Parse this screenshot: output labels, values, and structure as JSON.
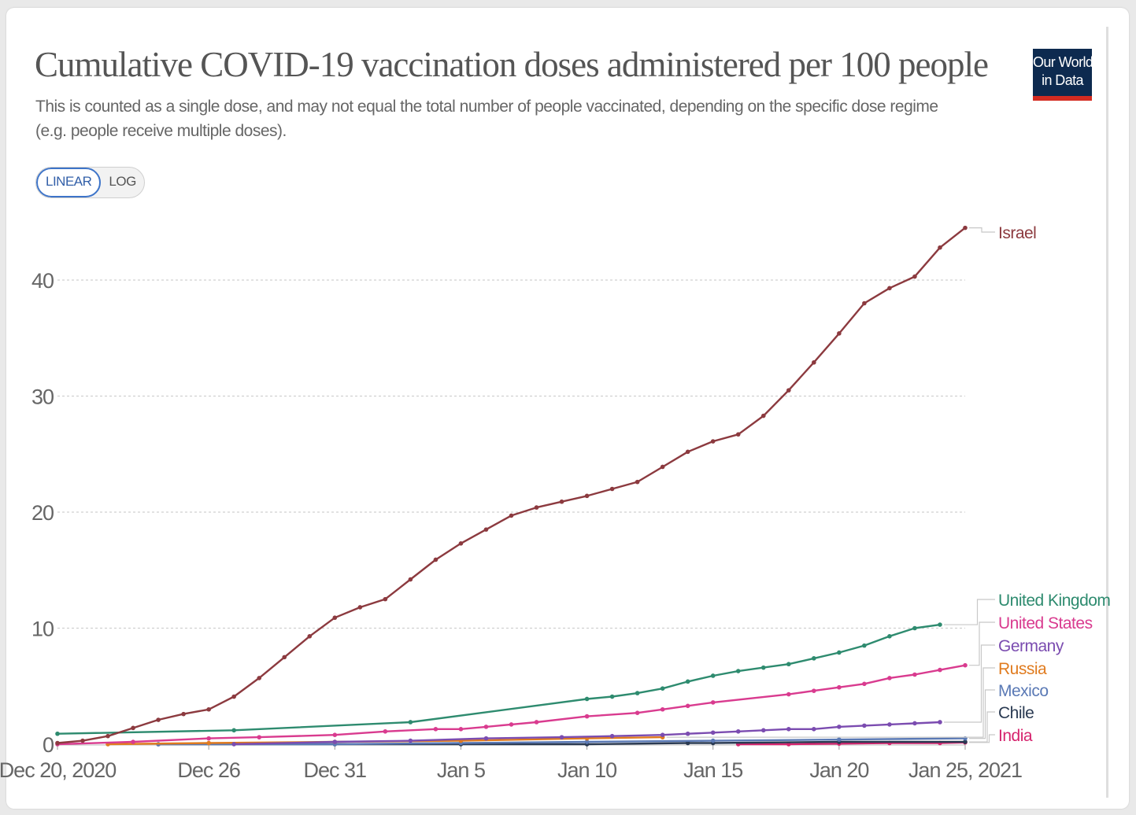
{
  "title": "Cumulative COVID-19 vaccination doses administered per 100 people",
  "subtitle": "This is counted as a single dose, and may not equal the total number of people vaccinated, depending on the specific dose regime (e.g. people receive multiple doses).",
  "logo": {
    "line1": "Our World",
    "line2": "in Data"
  },
  "scale_toggle": {
    "linear": "LINEAR",
    "log": "LOG",
    "selected": "LINEAR"
  },
  "chart_data": {
    "type": "line",
    "x_start": "2020-12-20",
    "x_end": "2021-01-25",
    "ylim": [
      0,
      45
    ],
    "yticks": [
      0,
      10,
      20,
      30,
      40
    ],
    "xticks": [
      {
        "date": "2020-12-20",
        "label": "Dec 20, 2020"
      },
      {
        "date": "2020-12-26",
        "label": "Dec 26"
      },
      {
        "date": "2020-12-31",
        "label": "Dec 31"
      },
      {
        "date": "2021-01-05",
        "label": "Jan 5"
      },
      {
        "date": "2021-01-10",
        "label": "Jan 10"
      },
      {
        "date": "2021-01-15",
        "label": "Jan 15"
      },
      {
        "date": "2021-01-20",
        "label": "Jan 20"
      },
      {
        "date": "2021-01-25",
        "label": "Jan 25, 2021"
      }
    ],
    "grid": true,
    "series": [
      {
        "name": "Israel",
        "color": "#8c3a3f",
        "points": [
          [
            "2020-12-20",
            0.1
          ],
          [
            "2020-12-21",
            0.3
          ],
          [
            "2020-12-22",
            0.7
          ],
          [
            "2020-12-23",
            1.4
          ],
          [
            "2020-12-24",
            2.1
          ],
          [
            "2020-12-25",
            2.6
          ],
          [
            "2020-12-26",
            3.0
          ],
          [
            "2020-12-27",
            4.1
          ],
          [
            "2020-12-28",
            5.7
          ],
          [
            "2020-12-29",
            7.5
          ],
          [
            "2020-12-30",
            9.3
          ],
          [
            "2020-12-31",
            10.9
          ],
          [
            "2021-01-01",
            11.8
          ],
          [
            "2021-01-02",
            12.5
          ],
          [
            "2021-01-03",
            14.2
          ],
          [
            "2021-01-04",
            15.9
          ],
          [
            "2021-01-05",
            17.3
          ],
          [
            "2021-01-06",
            18.5
          ],
          [
            "2021-01-07",
            19.7
          ],
          [
            "2021-01-08",
            20.4
          ],
          [
            "2021-01-09",
            20.9
          ],
          [
            "2021-01-10",
            21.4
          ],
          [
            "2021-01-11",
            22.0
          ],
          [
            "2021-01-12",
            22.6
          ],
          [
            "2021-01-13",
            23.9
          ],
          [
            "2021-01-14",
            25.2
          ],
          [
            "2021-01-15",
            26.1
          ],
          [
            "2021-01-16",
            26.7
          ],
          [
            "2021-01-17",
            28.3
          ],
          [
            "2021-01-18",
            30.5
          ],
          [
            "2021-01-19",
            32.9
          ],
          [
            "2021-01-20",
            35.4
          ],
          [
            "2021-01-21",
            38.0
          ],
          [
            "2021-01-22",
            39.3
          ],
          [
            "2021-01-23",
            40.3
          ],
          [
            "2021-01-24",
            42.8
          ],
          [
            "2021-01-25",
            44.5
          ]
        ]
      },
      {
        "name": "United Kingdom",
        "color": "#2e8b6f",
        "points": [
          [
            "2020-12-20",
            0.9
          ],
          [
            "2020-12-27",
            1.2
          ],
          [
            "2021-01-03",
            1.9
          ],
          [
            "2021-01-10",
            3.9
          ],
          [
            "2021-01-11",
            4.1
          ],
          [
            "2021-01-12",
            4.4
          ],
          [
            "2021-01-13",
            4.8
          ],
          [
            "2021-01-14",
            5.4
          ],
          [
            "2021-01-15",
            5.9
          ],
          [
            "2021-01-16",
            6.3
          ],
          [
            "2021-01-17",
            6.6
          ],
          [
            "2021-01-18",
            6.9
          ],
          [
            "2021-01-19",
            7.4
          ],
          [
            "2021-01-20",
            7.9
          ],
          [
            "2021-01-21",
            8.5
          ],
          [
            "2021-01-22",
            9.3
          ],
          [
            "2021-01-23",
            10.0
          ],
          [
            "2021-01-24",
            10.3
          ]
        ]
      },
      {
        "name": "United States",
        "color": "#d93b8f",
        "points": [
          [
            "2020-12-20",
            0.0
          ],
          [
            "2020-12-23",
            0.2
          ],
          [
            "2020-12-26",
            0.5
          ],
          [
            "2020-12-28",
            0.6
          ],
          [
            "2020-12-31",
            0.8
          ],
          [
            "2021-01-02",
            1.1
          ],
          [
            "2021-01-04",
            1.3
          ],
          [
            "2021-01-05",
            1.3
          ],
          [
            "2021-01-06",
            1.5
          ],
          [
            "2021-01-07",
            1.7
          ],
          [
            "2021-01-08",
            1.9
          ],
          [
            "2021-01-10",
            2.4
          ],
          [
            "2021-01-12",
            2.7
          ],
          [
            "2021-01-13",
            3.0
          ],
          [
            "2021-01-14",
            3.3
          ],
          [
            "2021-01-15",
            3.6
          ],
          [
            "2021-01-18",
            4.3
          ],
          [
            "2021-01-19",
            4.6
          ],
          [
            "2021-01-20",
            4.9
          ],
          [
            "2021-01-21",
            5.2
          ],
          [
            "2021-01-22",
            5.7
          ],
          [
            "2021-01-23",
            6.0
          ],
          [
            "2021-01-24",
            6.4
          ],
          [
            "2021-01-25",
            6.8
          ]
        ]
      },
      {
        "name": "Germany",
        "color": "#7b4cb0",
        "points": [
          [
            "2020-12-27",
            0.0
          ],
          [
            "2020-12-31",
            0.2
          ],
          [
            "2021-01-03",
            0.3
          ],
          [
            "2021-01-06",
            0.5
          ],
          [
            "2021-01-09",
            0.6
          ],
          [
            "2021-01-11",
            0.7
          ],
          [
            "2021-01-13",
            0.8
          ],
          [
            "2021-01-14",
            0.9
          ],
          [
            "2021-01-15",
            1.0
          ],
          [
            "2021-01-16",
            1.1
          ],
          [
            "2021-01-17",
            1.2
          ],
          [
            "2021-01-18",
            1.3
          ],
          [
            "2021-01-19",
            1.3
          ],
          [
            "2021-01-20",
            1.5
          ],
          [
            "2021-01-21",
            1.6
          ],
          [
            "2021-01-22",
            1.7
          ],
          [
            "2021-01-23",
            1.8
          ],
          [
            "2021-01-24",
            1.9
          ]
        ]
      },
      {
        "name": "Russia",
        "color": "#e07b1f",
        "points": [
          [
            "2020-12-22",
            0.0
          ],
          [
            "2020-12-26",
            0.1
          ],
          [
            "2020-12-31",
            0.2
          ],
          [
            "2021-01-05",
            0.3
          ],
          [
            "2021-01-10",
            0.5
          ],
          [
            "2021-01-13",
            0.6
          ]
        ]
      },
      {
        "name": "Mexico",
        "color": "#5a79b5",
        "points": [
          [
            "2020-12-24",
            0.0
          ],
          [
            "2020-12-31",
            0.0
          ],
          [
            "2021-01-05",
            0.1
          ],
          [
            "2021-01-10",
            0.2
          ],
          [
            "2021-01-15",
            0.3
          ],
          [
            "2021-01-20",
            0.4
          ],
          [
            "2021-01-25",
            0.5
          ]
        ]
      },
      {
        "name": "Chile",
        "color": "#2a3a52",
        "points": [
          [
            "2020-12-24",
            0.0
          ],
          [
            "2020-12-31",
            0.0
          ],
          [
            "2021-01-05",
            0.0
          ],
          [
            "2021-01-10",
            0.0
          ],
          [
            "2021-01-14",
            0.1
          ],
          [
            "2021-01-15",
            0.1
          ],
          [
            "2021-01-20",
            0.2
          ],
          [
            "2021-01-25",
            0.2
          ]
        ]
      },
      {
        "name": "India",
        "color": "#d6246e",
        "points": [
          [
            "2021-01-16",
            0.0
          ],
          [
            "2021-01-18",
            0.0
          ],
          [
            "2021-01-20",
            0.05
          ],
          [
            "2021-01-22",
            0.1
          ],
          [
            "2021-01-24",
            0.1
          ],
          [
            "2021-01-25",
            0.15
          ]
        ]
      }
    ]
  }
}
